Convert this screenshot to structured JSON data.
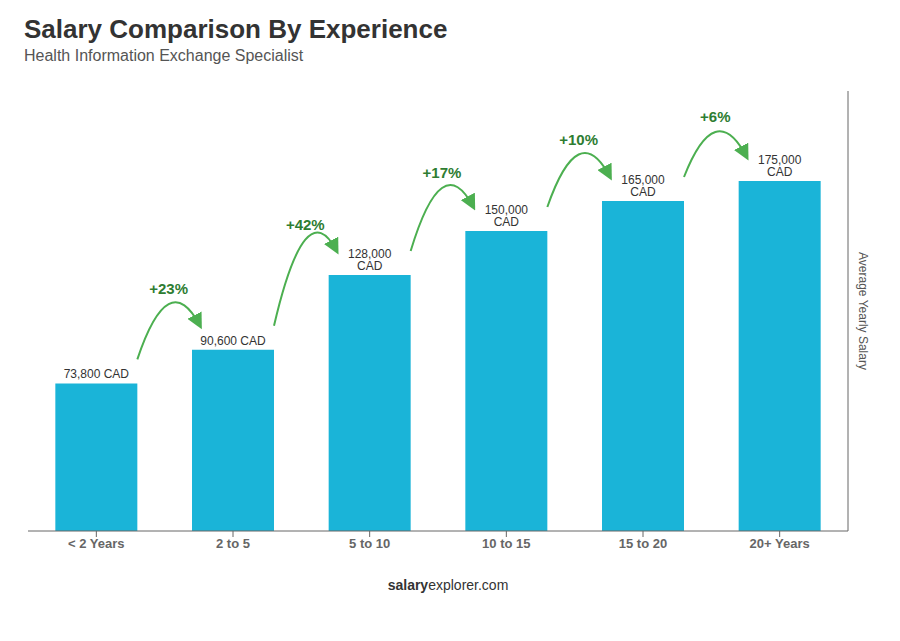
{
  "chart_data": {
    "type": "bar",
    "title": "Salary Comparison By Experience",
    "subtitle": "Health Information Exchange Specialist",
    "categories": [
      "< 2 Years",
      "2 to 5",
      "5 to 10",
      "10 to 15",
      "15 to 20",
      "20+ Years"
    ],
    "values": [
      73800,
      90600,
      128000,
      150000,
      165000,
      175000
    ],
    "value_labels": [
      "73,800 CAD",
      "90,600 CAD",
      "128,000 CAD",
      "150,000 CAD",
      "165,000 CAD",
      "175,000 CAD"
    ],
    "data_labels": true,
    "color": "#1ab4d8",
    "ylim": [
      0,
      220000
    ],
    "tick_labels": "x",
    "ylabel": "Average Yearly Salary",
    "annotations": [
      {
        "text": "+23%",
        "between": [
          "< 2 Years",
          "2 to 5"
        ]
      },
      {
        "text": "+42%",
        "between": [
          "2 to 5",
          "5 to 10"
        ]
      },
      {
        "text": "+17%",
        "between": [
          "5 to 10",
          "10 to 15"
        ]
      },
      {
        "text": "+10%",
        "between": [
          "10 to 15",
          "15 to 20"
        ]
      },
      {
        "text": "+6%",
        "between": [
          "15 to 20",
          "20+ Years"
        ]
      },
      {
        "text": "salary"
      },
      {
        "text": "explorer.com"
      }
    ]
  }
}
